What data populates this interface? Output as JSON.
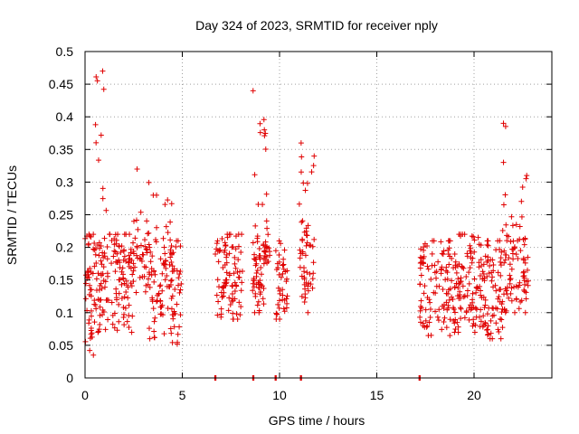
{
  "chart_data": {
    "type": "scatter",
    "title": "Day 324 of 2023, SRMTID for receiver nply",
    "xlabel": "GPS time / hours",
    "ylabel": "SRMTID / TECUs",
    "xlim": [
      0,
      24
    ],
    "ylim": [
      0,
      0.5
    ],
    "x_ticks": [
      0,
      5,
      10,
      15,
      20
    ],
    "x_tick_labels": [
      "0",
      "5",
      "10",
      "15",
      "20"
    ],
    "y_ticks": [
      0,
      0.05,
      0.1,
      0.15,
      0.2,
      0.25,
      0.3,
      0.35,
      0.4,
      0.45,
      0.5
    ],
    "y_tick_labels": [
      "0",
      "0.05",
      "0.1",
      "0.15",
      "0.2",
      "0.25",
      "0.3",
      "0.35",
      "0.4",
      "0.45",
      "0.5"
    ],
    "grid": true,
    "legend": "none",
    "marker": "+",
    "color": "#e00000",
    "series": [
      {
        "name": "SRMTID",
        "clusters": [
          {
            "x_start": 0.0,
            "x_end": 0.5,
            "y_min": 0.035,
            "y_max": 0.22,
            "n": 45
          },
          {
            "x_start": 0.5,
            "x_end": 1.1,
            "y_min": 0.07,
            "y_max": 0.47,
            "n": 55
          },
          {
            "x_start": 1.1,
            "x_end": 2.5,
            "y_min": 0.07,
            "y_max": 0.22,
            "n": 90
          },
          {
            "x_start": 2.4,
            "x_end": 3.3,
            "y_min": 0.13,
            "y_max": 0.32,
            "n": 45
          },
          {
            "x_start": 3.3,
            "x_end": 4.5,
            "y_min": 0.06,
            "y_max": 0.28,
            "n": 80
          },
          {
            "x_start": 4.4,
            "x_end": 4.95,
            "y_min": 0.05,
            "y_max": 0.21,
            "n": 35
          },
          {
            "x_start": 6.7,
            "x_end": 7.0,
            "y_min": 0.065,
            "y_max": 0.21,
            "n": 14
          },
          {
            "x_start": 7.0,
            "x_end": 8.1,
            "y_min": 0.09,
            "y_max": 0.22,
            "n": 75
          },
          {
            "x_start": 8.6,
            "x_end": 9.2,
            "y_min": 0.1,
            "y_max": 0.44,
            "n": 55
          },
          {
            "x_start": 9.2,
            "x_end": 9.5,
            "y_min": 0.17,
            "y_max": 0.38,
            "n": 25
          },
          {
            "x_start": 9.8,
            "x_end": 10.4,
            "y_min": 0.09,
            "y_max": 0.21,
            "n": 40
          },
          {
            "x_start": 11.0,
            "x_end": 11.8,
            "y_min": 0.1,
            "y_max": 0.36,
            "n": 55
          },
          {
            "x_start": 17.2,
            "x_end": 18.8,
            "y_min": 0.065,
            "y_max": 0.21,
            "n": 100
          },
          {
            "x_start": 18.8,
            "x_end": 20.3,
            "y_min": 0.07,
            "y_max": 0.22,
            "n": 100
          },
          {
            "x_start": 20.3,
            "x_end": 21.3,
            "y_min": 0.06,
            "y_max": 0.21,
            "n": 70
          },
          {
            "x_start": 21.3,
            "x_end": 21.7,
            "y_min": 0.06,
            "y_max": 0.39,
            "n": 40
          },
          {
            "x_start": 21.7,
            "x_end": 22.8,
            "y_min": 0.1,
            "y_max": 0.31,
            "n": 70
          }
        ],
        "zero_markers_x": [
          6.7,
          8.65,
          9.8,
          11.1,
          17.2
        ]
      }
    ]
  }
}
